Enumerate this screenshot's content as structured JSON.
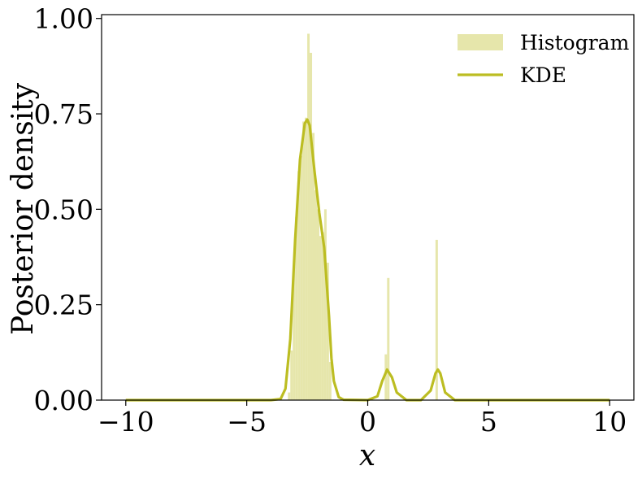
{
  "chart_data": {
    "type": "bar",
    "xlabel": "x",
    "ylabel": "Posterior density",
    "xlim": [
      -11,
      11
    ],
    "ylim": [
      0,
      1.01
    ],
    "xticks": [
      -10,
      -5,
      0,
      5,
      10
    ],
    "xtick_labels": [
      "−10",
      "−5",
      "0",
      "5",
      "10"
    ],
    "yticks": [
      0,
      0.25,
      0.5,
      0.75,
      1.0
    ],
    "ytick_labels": [
      "0.00",
      "0.25",
      "0.50",
      "0.75",
      "1.00"
    ],
    "grid": false,
    "legend_position": "top-right",
    "colors": {
      "histogram": "#e6e6ab",
      "kde": "#bcbd22"
    },
    "series": [
      {
        "name": "Histogram",
        "kind": "histogram",
        "bin_width": 0.1,
        "bins": [
          {
            "x": -3.3,
            "y": 0.02
          },
          {
            "x": -3.2,
            "y": 0.13
          },
          {
            "x": -3.1,
            "y": 0.35
          },
          {
            "x": -3.0,
            "y": 0.48
          },
          {
            "x": -2.9,
            "y": 0.6
          },
          {
            "x": -2.8,
            "y": 0.64
          },
          {
            "x": -2.7,
            "y": 0.73
          },
          {
            "x": -2.6,
            "y": 0.74
          },
          {
            "x": -2.5,
            "y": 0.96
          },
          {
            "x": -2.4,
            "y": 0.91
          },
          {
            "x": -2.3,
            "y": 0.7
          },
          {
            "x": -2.2,
            "y": 0.55
          },
          {
            "x": -2.1,
            "y": 0.5
          },
          {
            "x": -2.0,
            "y": 0.43
          },
          {
            "x": -1.9,
            "y": 0.44
          },
          {
            "x": -1.8,
            "y": 0.5
          },
          {
            "x": -1.7,
            "y": 0.36
          },
          {
            "x": -1.6,
            "y": 0.1
          },
          {
            "x": 0.7,
            "y": 0.12
          },
          {
            "x": 0.8,
            "y": 0.32
          },
          {
            "x": 2.8,
            "y": 0.42
          }
        ]
      },
      {
        "name": "KDE",
        "kind": "line",
        "x": [
          -10,
          -4,
          -3.6,
          -3.4,
          -3.2,
          -3.0,
          -2.8,
          -2.6,
          -2.5,
          -2.4,
          -2.2,
          -2.0,
          -1.8,
          -1.6,
          -1.5,
          -1.4,
          -1.2,
          -1.0,
          0.0,
          0.4,
          0.6,
          0.8,
          1.0,
          1.2,
          1.6,
          2.2,
          2.6,
          2.8,
          2.9,
          3.0,
          3.2,
          3.6,
          4.5,
          10
        ],
        "y": [
          0,
          0.0,
          0.003,
          0.03,
          0.16,
          0.42,
          0.63,
          0.725,
          0.735,
          0.72,
          0.6,
          0.49,
          0.4,
          0.22,
          0.11,
          0.05,
          0.008,
          0.001,
          0.0,
          0.01,
          0.05,
          0.08,
          0.06,
          0.02,
          0.0,
          0.0,
          0.025,
          0.07,
          0.08,
          0.07,
          0.02,
          0.0,
          0.0,
          0
        ]
      }
    ]
  }
}
